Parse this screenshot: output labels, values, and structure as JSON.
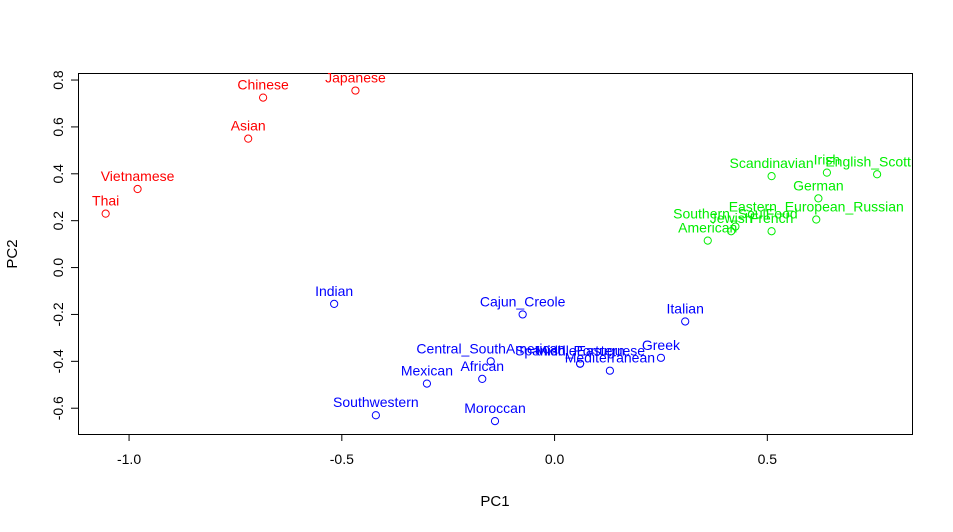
{
  "chart_data": {
    "type": "scatter",
    "title": "",
    "xlabel": "PC1",
    "ylabel": "PC2",
    "xlim": [
      -1.12,
      0.84
    ],
    "ylim": [
      -0.71,
      0.83
    ],
    "x_ticks": [
      -1.0,
      -0.5,
      0.0,
      0.5
    ],
    "x_tick_labels": [
      "-1.0",
      "-0.5",
      "0.0",
      "0.5"
    ],
    "y_ticks": [
      -0.6,
      -0.4,
      -0.2,
      0.0,
      0.2,
      0.4,
      0.6,
      0.8
    ],
    "y_tick_labels": [
      "-0.6",
      "-0.4",
      "-0.2",
      "0.0",
      "0.2",
      "0.4",
      "0.6",
      "0.8"
    ],
    "grid": false,
    "colors": {
      "red": "#ff0000",
      "green": "#00ee00",
      "blue": "#0000ff"
    },
    "points": [
      {
        "label": "Chinese",
        "x": -0.685,
        "y": 0.725,
        "color": "red"
      },
      {
        "label": "Japanese",
        "x": -0.468,
        "y": 0.755,
        "color": "red"
      },
      {
        "label": "Asian",
        "x": -0.72,
        "y": 0.55,
        "color": "red"
      },
      {
        "label": "Vietnamese",
        "x": -0.98,
        "y": 0.335,
        "color": "red"
      },
      {
        "label": "Thai",
        "x": -1.055,
        "y": 0.23,
        "color": "red"
      },
      {
        "label": "Scandinavian",
        "x": 0.51,
        "y": 0.39,
        "color": "green"
      },
      {
        "label": "Irish",
        "x": 0.64,
        "y": 0.405,
        "color": "green"
      },
      {
        "label": "English_Scottish",
        "x": 0.758,
        "y": 0.398,
        "color": "green"
      },
      {
        "label": "German",
        "x": 0.62,
        "y": 0.295,
        "color": "green"
      },
      {
        "label": "Eastern_European_Russian",
        "x": 0.615,
        "y": 0.205,
        "color": "green"
      },
      {
        "label": "Southern_SoulFood",
        "x": 0.425,
        "y": 0.175,
        "color": "green"
      },
      {
        "label": "French",
        "x": 0.51,
        "y": 0.155,
        "color": "green"
      },
      {
        "label": "Jewish",
        "x": 0.415,
        "y": 0.155,
        "color": "green"
      },
      {
        "label": "American",
        "x": 0.36,
        "y": 0.115,
        "color": "green"
      },
      {
        "label": "Indian",
        "x": -0.518,
        "y": -0.155,
        "color": "blue"
      },
      {
        "label": "Cajun_Creole",
        "x": -0.075,
        "y": -0.2,
        "color": "blue"
      },
      {
        "label": "Italian",
        "x": 0.307,
        "y": -0.23,
        "color": "blue"
      },
      {
        "label": "Central_SouthAmerican",
        "x": -0.15,
        "y": -0.4,
        "color": "blue"
      },
      {
        "label": "Spanish_Portuguese",
        "x": 0.06,
        "y": -0.41,
        "color": "blue"
      },
      {
        "label": "MiddleEastern",
        "x": 0.06,
        "y": -0.41,
        "color": "blue"
      },
      {
        "label": "Greek",
        "x": 0.25,
        "y": -0.385,
        "color": "blue"
      },
      {
        "label": "Mediterranean",
        "x": 0.13,
        "y": -0.44,
        "color": "blue"
      },
      {
        "label": "African",
        "x": -0.17,
        "y": -0.475,
        "color": "blue"
      },
      {
        "label": "Mexican",
        "x": -0.3,
        "y": -0.495,
        "color": "blue"
      },
      {
        "label": "Southwestern",
        "x": -0.42,
        "y": -0.63,
        "color": "blue"
      },
      {
        "label": "Moroccan",
        "x": -0.14,
        "y": -0.655,
        "color": "blue"
      }
    ]
  }
}
